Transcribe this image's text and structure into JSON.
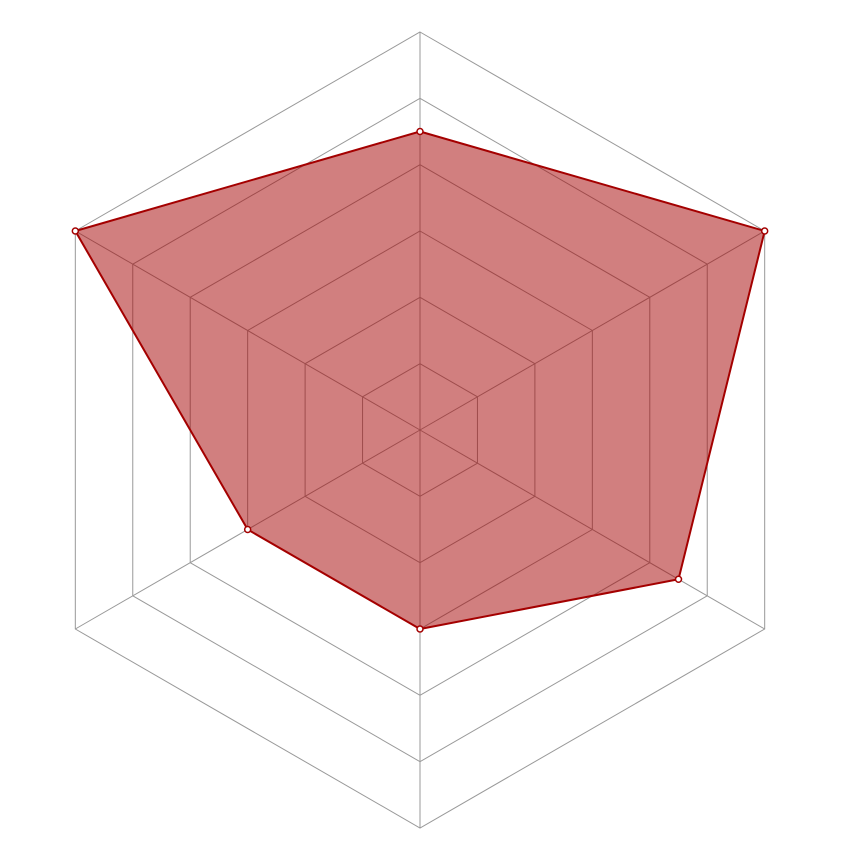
{
  "chart_data": {
    "type": "radar",
    "categories": [
      null,
      null,
      null,
      null,
      null,
      null
    ],
    "values": [
      4.5,
      6,
      4.5,
      3,
      3,
      6
    ],
    "rlim": [
      0,
      6
    ],
    "rticks": [
      1,
      2,
      3,
      4,
      5,
      6
    ],
    "color": "#a40000",
    "grid": true
  }
}
